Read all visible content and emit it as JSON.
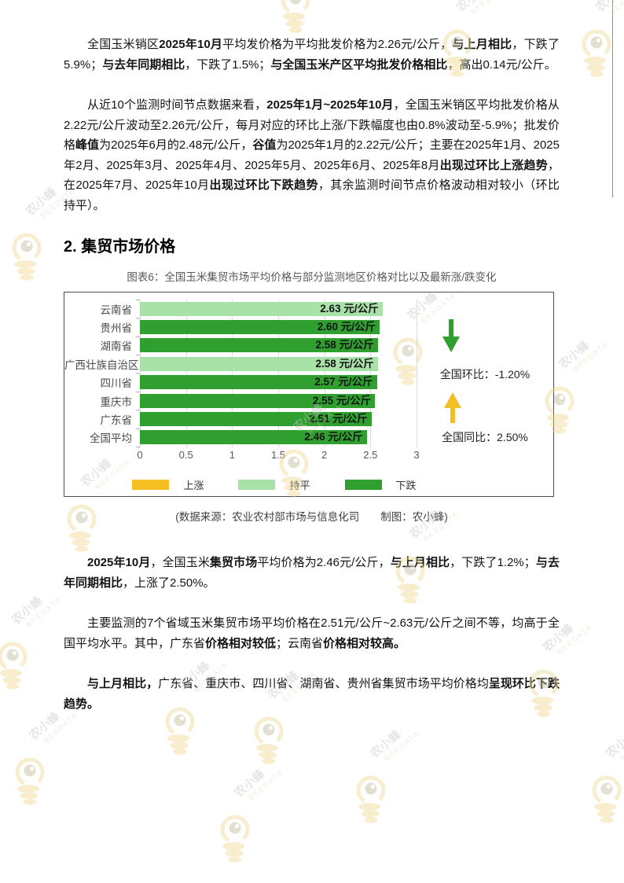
{
  "page": {
    "watermark": {
      "name": "农小蜂",
      "subname": "BEEDATA"
    }
  },
  "section": {
    "heading": "2. 集贸市场价格"
  },
  "figure": {
    "title": "图表6：全国玉米集贸市场平均价格与部分监测地区价格对比以及最新涨/跌变化",
    "source_caption": "(数据来源：农业农村部市场与信息化司　　制图：农小蜂)"
  },
  "paragraphs": [
    {
      "segments": [
        {
          "t": "全国玉米销区",
          "b": false
        },
        {
          "t": "2025年10月",
          "b": true
        },
        {
          "t": "平均发价格为平均批发价格为2.26元/公斤，",
          "b": false
        },
        {
          "t": "与上月相比",
          "b": true
        },
        {
          "t": "，下跌了5.9%；",
          "b": false
        },
        {
          "t": "与去年同期相比",
          "b": true
        },
        {
          "t": "，下跌了1.5%；",
          "b": false
        },
        {
          "t": "与全国玉米产区平均批发价格相比",
          "b": true
        },
        {
          "t": "，高出0.14元/公斤。",
          "b": false
        }
      ]
    },
    {
      "segments": [
        {
          "t": "从近10个监测时间节点数据来看，",
          "b": false
        },
        {
          "t": "2025年1月~2025年10月",
          "b": true
        },
        {
          "t": "，全国玉米销区平均批发价格从2.22元/公斤波动至2.26元/公斤，每月对应的环比上涨/下跌幅度也由0.8%波动至-5.9%；批发价格",
          "b": false
        },
        {
          "t": "峰值",
          "b": true
        },
        {
          "t": "为2025年6月的2.48元/公斤，",
          "b": false
        },
        {
          "t": "谷值",
          "b": true
        },
        {
          "t": "为2025年1月的2.22元/公斤；主要在2025年1月、2025年2月、2025年3月、2025年4月、2025年5月、2025年6月、2025年8月",
          "b": false
        },
        {
          "t": "出现过环比上涨趋势",
          "b": true
        },
        {
          "t": "，在2025年7月、2025年10月",
          "b": false
        },
        {
          "t": "出现过环比下跌趋势",
          "b": true
        },
        {
          "t": "，其余监测时间节点价格波动相对较小（环比持平）。",
          "b": false
        }
      ]
    },
    {
      "segments": [
        {
          "t": "2025年10月",
          "b": true
        },
        {
          "t": "，全国玉米",
          "b": false
        },
        {
          "t": "集贸市场",
          "b": true
        },
        {
          "t": "平均价格为2.46元/公斤，",
          "b": false
        },
        {
          "t": "与上月相比",
          "b": true
        },
        {
          "t": "，下跌了1.2%；",
          "b": false
        },
        {
          "t": "与去年同期相比",
          "b": true
        },
        {
          "t": "，上涨了2.50%。",
          "b": false
        }
      ]
    },
    {
      "segments": [
        {
          "t": "主要监测的7个省域玉米集贸市场平均价格在2.51元/公斤~2.63元/公斤之间不等，均高于全国平均水平。其中，广东省",
          "b": false
        },
        {
          "t": "价格相对较低",
          "b": true
        },
        {
          "t": "；云南省",
          "b": false
        },
        {
          "t": "价格相对较高。",
          "b": true
        }
      ]
    },
    {
      "segments": [
        {
          "t": "与上月相比，",
          "b": true
        },
        {
          "t": "广东省、重庆市、四川省、湖南省、贵州省集贸市场平均价格均",
          "b": false
        },
        {
          "t": "呈现环比下跌趋势。",
          "b": true
        }
      ]
    }
  ],
  "chart_data": {
    "type": "bar",
    "orientation": "horizontal",
    "title": "全国玉米集贸市场平均价格与部分监测地区价格对比以及最新涨/跌变化",
    "categories": [
      "云南省",
      "贵州省",
      "湖南省",
      "广西壮族自治区",
      "四川省",
      "重庆市",
      "广东省",
      "全国平均"
    ],
    "values": [
      2.63,
      2.6,
      2.58,
      2.58,
      2.57,
      2.55,
      2.51,
      2.46
    ],
    "statuses": [
      "持平",
      "下跌",
      "下跌",
      "持平",
      "下跌",
      "下跌",
      "下跌",
      "下跌"
    ],
    "unit": "元/公斤",
    "xlabel": "",
    "ylabel": "",
    "xlim": [
      0,
      3
    ],
    "xticks": [
      "0",
      "0.5",
      "1",
      "1.5",
      "2",
      "2.5",
      "3"
    ],
    "grid": true,
    "legend_position": "bottom",
    "legend": [
      {
        "label": "上涨",
        "color": "#F5BE23"
      },
      {
        "label": "持平",
        "color": "#A8E2A8"
      },
      {
        "label": "下跌",
        "color": "#2FA02F"
      }
    ],
    "status_colors": {
      "上涨": "#F5BE23",
      "持平": "#A8E2A8",
      "下跌": "#2FA02F"
    },
    "annotations": [
      {
        "label": "全国环比：",
        "value": "-1.20%",
        "arrow": "down",
        "color": "#2FA02F"
      },
      {
        "label": "全国同比：",
        "value": "2.50%",
        "arrow": "up",
        "color": "#F5BE23"
      }
    ]
  }
}
